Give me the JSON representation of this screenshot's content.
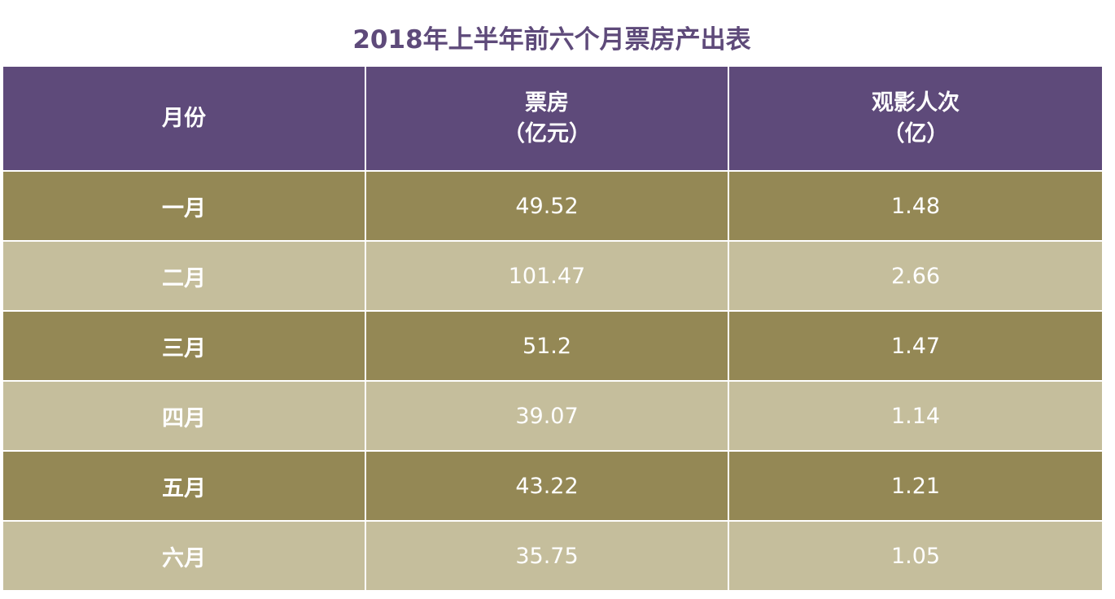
{
  "chart_data": {
    "type": "table",
    "title": "2018年上半年前六个月票房产出表",
    "columns": [
      {
        "line1": "月份",
        "line2": ""
      },
      {
        "line1": "票房",
        "line2": "（亿元）"
      },
      {
        "line1": "观影人次",
        "line2": "（亿）"
      }
    ],
    "rows": [
      {
        "month": "一月",
        "box_office": "49.52",
        "admissions": "1.48"
      },
      {
        "month": "二月",
        "box_office": "101.47",
        "admissions": "2.66"
      },
      {
        "month": "三月",
        "box_office": "51.2",
        "admissions": "1.47"
      },
      {
        "month": "四月",
        "box_office": "39.07",
        "admissions": "1.14"
      },
      {
        "month": "五月",
        "box_office": "43.22",
        "admissions": "1.21"
      },
      {
        "month": "六月",
        "box_office": "35.75",
        "admissions": "1.05"
      }
    ]
  },
  "colors": {
    "header": "#5e4a7a",
    "row_dark": "#948855",
    "row_light": "#c5be9c",
    "title": "#5e4a7a"
  }
}
